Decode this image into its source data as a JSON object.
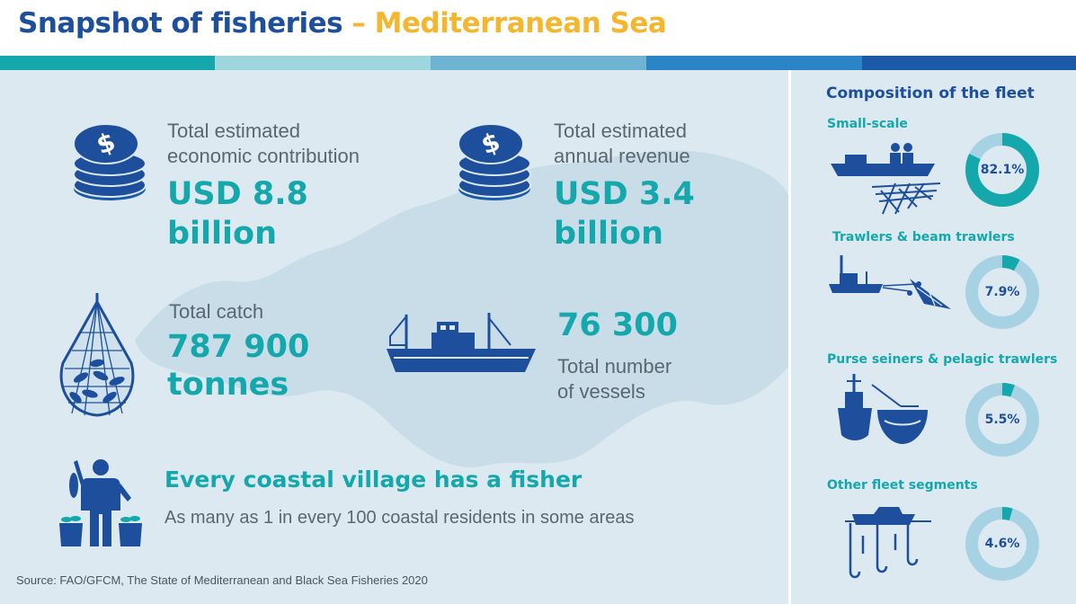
{
  "header": {
    "title_main": "Snapshot of fisheries",
    "title_dash": "–",
    "title_region": "Mediterranean Sea"
  },
  "colors": {
    "title_blue": "#1d4f9c",
    "title_gold": "#f3b62e",
    "teal": "#14a8ad",
    "stripes": [
      "#14a8ad",
      "#9fd6de",
      "#6fb3d3",
      "#2a84c6",
      "#1c5aa8"
    ]
  },
  "stats": {
    "economic": {
      "label_line1": "Total estimated",
      "label_line2": "economic contribution",
      "value_line1": "USD 8.8",
      "value_line2": "billion",
      "icon": "coin-stack-icon"
    },
    "revenue": {
      "label_line1": "Total estimated",
      "label_line2": "annual revenue",
      "value_line1": "USD 3.4",
      "value_line2": "billion",
      "icon": "coin-stack-icon"
    },
    "catch": {
      "label": "Total catch",
      "value_line1": "787 900",
      "value_line2": "tonnes",
      "icon": "fishing-net-icon"
    },
    "vessels": {
      "value": "76 300",
      "label_line1": "Total number",
      "label_line2": "of vessels",
      "icon": "fishing-vessel-icon"
    }
  },
  "village": {
    "heading": "Every coastal village has a fisher",
    "subtext": "As many as 1 in every 100 coastal residents in some areas",
    "icon": "fisher-icon"
  },
  "source": "Source: FAO/GFCM, The State of Mediterranean and Black Sea Fisheries 2020",
  "fleet": {
    "title": "Composition of the fleet",
    "segments": [
      {
        "label": "Small-scale",
        "value_text": "82.1%",
        "share": 0.821,
        "icon": "small-boat-icon"
      },
      {
        "label": "Trawlers & beam trawlers",
        "value_text": "7.9%",
        "share": 0.079,
        "icon": "trawler-icon"
      },
      {
        "label": "Purse seiners & pelagic trawlers",
        "value_text": "5.5%",
        "share": 0.055,
        "icon": "purse-seiner-icon"
      },
      {
        "label": "Other fleet segments",
        "value_text": "4.6%",
        "share": 0.046,
        "icon": "hooks-boat-icon"
      }
    ]
  }
}
